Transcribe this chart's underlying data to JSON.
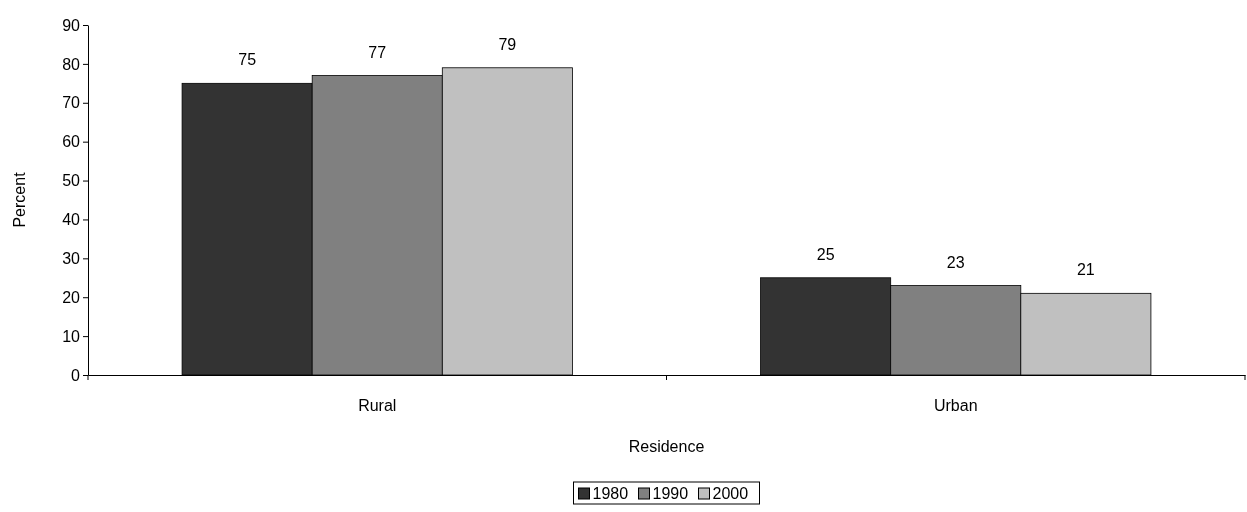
{
  "chart_data": {
    "type": "bar",
    "xlabel": "Residence",
    "ylabel": "Percent",
    "categories": [
      "Rural",
      "Urban"
    ],
    "series": [
      {
        "name": "1980",
        "color": "#333333",
        "values": [
          75,
          25
        ]
      },
      {
        "name": "1990",
        "color": "#808080",
        "values": [
          77,
          23
        ]
      },
      {
        "name": "2000",
        "color": "#c0c0c0",
        "values": [
          79,
          21
        ]
      }
    ],
    "ylim": [
      0,
      90
    ],
    "yticks": [
      0,
      10,
      20,
      30,
      40,
      50,
      60,
      70,
      80,
      90
    ],
    "data_labels": true,
    "legend": "bottom",
    "grid": false
  }
}
